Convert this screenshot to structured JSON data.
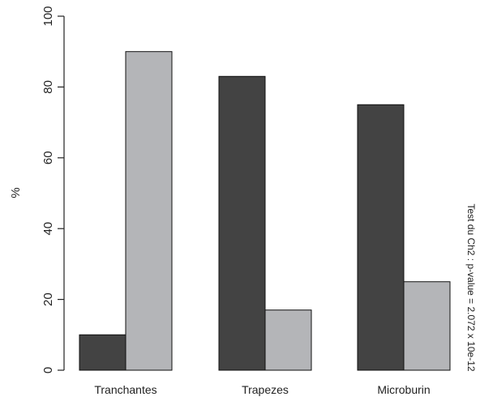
{
  "chart_data": {
    "type": "bar",
    "categories": [
      "Tranchantes",
      "Trapezes",
      "Microburin"
    ],
    "series": [
      {
        "values": [
          10,
          83,
          75
        ],
        "color": "#434343"
      },
      {
        "values": [
          90,
          17,
          25
        ],
        "color": "#b4b5b8"
      }
    ],
    "ylabel": "%",
    "ylim": [
      0,
      100
    ],
    "yticks": [
      0,
      20,
      40,
      60,
      80,
      100
    ],
    "grid": false,
    "annotation": "Test du Ch2 : p-value = 2.072 x 10e-12"
  }
}
